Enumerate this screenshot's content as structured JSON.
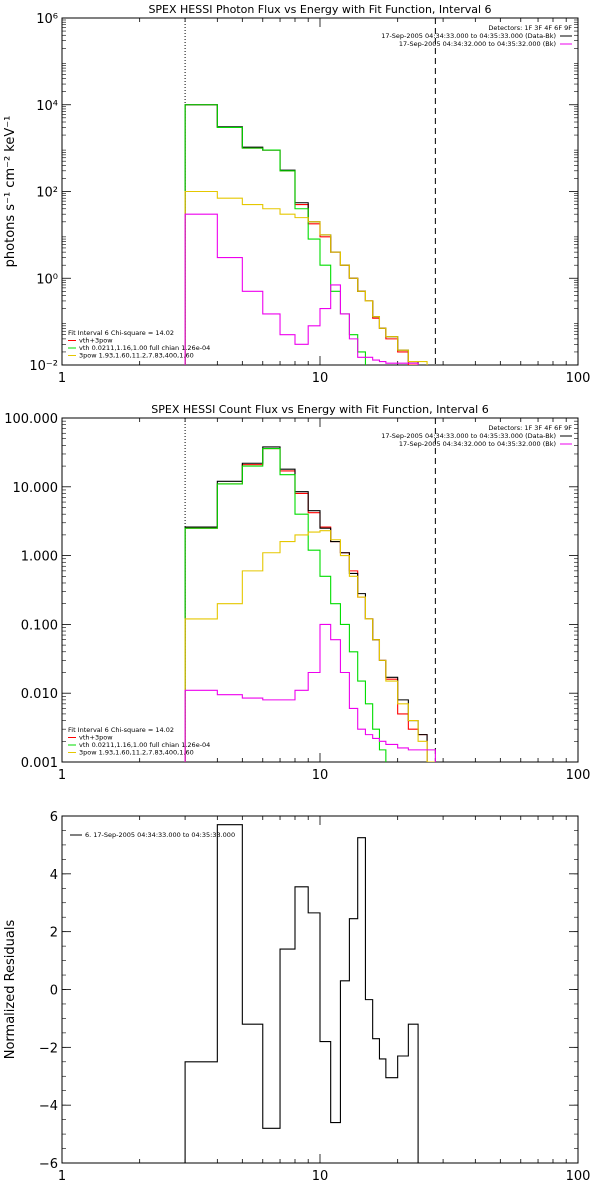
{
  "chart_data": [
    {
      "type": "line",
      "title": "SPEX HESSI Photon Flux vs Energy with Fit Function, Interval 6",
      "xlabel": "",
      "ylabel": "photons s⁻¹ cm⁻² keV⁻¹",
      "xscale": "log",
      "yscale": "log",
      "xlim": [
        1,
        100
      ],
      "ylim": [
        0.01,
        1000000
      ],
      "xticks": [
        "1",
        "10",
        "100"
      ],
      "yticks": [
        "10⁻²",
        "10⁰",
        "10²",
        "10⁴",
        "10⁶"
      ],
      "ytick_values": [
        0.01,
        1,
        100,
        10000,
        1000000
      ],
      "vlines": [
        {
          "x": 3,
          "style": "dotted"
        },
        {
          "x": 28,
          "style": "dashed"
        }
      ],
      "legend_top_right": [
        "Detectors: 1F 3F 4F 6F 9F",
        "17-Sep-2005 04:34:33.000 to 04:35:33.000 (Data-Bk)",
        "17-Sep-2005 04:34:32.000 to 04:35:32.000 (Bk)"
      ],
      "legend_bottom_left": [
        "Fit Interval 6   Chi-square = 14.02",
        "vth+3pow",
        "vth 0.0211,1.16,1.00  full chian 1.26e-04",
        "3pow 1.93,1.60,11.2,7.83,400,1.60"
      ],
      "edges": [
        3,
        4,
        5,
        6,
        7,
        8,
        9,
        10,
        11,
        12,
        13,
        14,
        15,
        16,
        17,
        18,
        20,
        22,
        24,
        26,
        28,
        30,
        32
      ],
      "series": [
        {
          "color": "#ff0000",
          "values": [
            10000,
            3000,
            1000,
            900,
            300,
            50,
            18,
            9,
            4,
            2,
            1.0,
            0.5,
            0.3,
            0.12,
            0.07,
            0.04,
            0.02,
            0.01,
            null,
            null,
            null,
            null
          ]
        },
        {
          "color": "#000000",
          "values": [
            10000,
            3100,
            1050,
            900,
            310,
            55,
            20,
            10,
            4,
            2,
            1.0,
            0.5,
            0.3,
            0.13,
            0.07,
            0.045,
            0.022,
            0.012,
            null,
            null,
            null,
            null
          ]
        },
        {
          "color": "#00dd00",
          "values": [
            10000,
            3000,
            1000,
            900,
            300,
            40,
            8,
            2,
            0.5,
            0.15,
            0.05,
            0.02,
            null,
            null,
            null,
            null,
            null,
            null,
            null,
            null,
            null,
            null
          ]
        },
        {
          "color": "#e5c700",
          "values": [
            100,
            70,
            50,
            40,
            30,
            25,
            20,
            10,
            4,
            2,
            1.0,
            0.5,
            0.3,
            0.13,
            0.07,
            0.045,
            0.022,
            0.012,
            0.012,
            null,
            null,
            null
          ]
        },
        {
          "color": "#ee00ee",
          "values": [
            30,
            3,
            0.5,
            0.15,
            0.05,
            0.03,
            0.08,
            0.2,
            0.7,
            0.15,
            0.04,
            0.015,
            0.015,
            0.013,
            0.012,
            0.011,
            0.011,
            0.011,
            null,
            null,
            null,
            null
          ]
        }
      ]
    },
    {
      "type": "line",
      "title": "SPEX HESSI Count Flux vs Energy with Fit Function, Interval 6",
      "xlabel": "",
      "ylabel": "",
      "xscale": "log",
      "yscale": "log",
      "xlim": [
        1,
        100
      ],
      "ylim": [
        0.001,
        100
      ],
      "xticks": [
        "1",
        "10",
        "100"
      ],
      "yticks": [
        "0.001",
        "0.010",
        "0.100",
        "1.000",
        "10.000",
        "100.000"
      ],
      "ytick_values": [
        0.001,
        0.01,
        0.1,
        1,
        10,
        100
      ],
      "vlines": [
        {
          "x": 3,
          "style": "dotted"
        },
        {
          "x": 28,
          "style": "dashed"
        }
      ],
      "legend_top_right": [
        "Detectors: 1F 3F 4F 6F 9F",
        "17-Sep-2005 04:34:33.000 to 04:35:33.000 (Data-Bk)",
        "17-Sep-2005 04:34:32.000 to 04:35:32.000 (Bk)"
      ],
      "legend_bottom_left": [
        "Fit Interval 6   Chi-square = 14.02",
        "vth+3pow",
        "vth 0.0211,1.16,1.00  full chian 1.26e-04",
        "3pow 1.93,1.60,11.2,7.83,400,1.60"
      ],
      "edges": [
        3,
        4,
        5,
        6,
        7,
        8,
        9,
        10,
        11,
        12,
        13,
        14,
        15,
        16,
        17,
        18,
        20,
        22,
        24,
        26,
        28,
        30,
        32
      ],
      "series": [
        {
          "color": "#ff0000",
          "values": [
            2.5,
            11,
            21,
            36,
            17,
            8,
            4.2,
            2.6,
            1.6,
            1.1,
            0.6,
            0.25,
            0.12,
            0.06,
            0.03,
            0.016,
            0.005,
            0.003,
            0.0025,
            null,
            null,
            null
          ]
        },
        {
          "color": "#000000",
          "values": [
            2.6,
            12,
            22,
            38,
            18,
            8.5,
            4.5,
            2.5,
            1.6,
            1.1,
            0.55,
            0.28,
            0.12,
            0.06,
            0.03,
            0.017,
            0.008,
            0.004,
            0.0025,
            null,
            null,
            null
          ]
        },
        {
          "color": "#00dd00",
          "values": [
            2.5,
            11,
            20,
            36,
            15,
            4,
            1.2,
            0.5,
            0.2,
            0.1,
            0.04,
            0.015,
            0.007,
            0.003,
            0.0015,
            null,
            null,
            null,
            null,
            null,
            null,
            null
          ]
        },
        {
          "color": "#e5c700",
          "values": [
            0.12,
            0.2,
            0.6,
            1.1,
            1.6,
            2,
            2.2,
            2.3,
            1.7,
            1.0,
            0.5,
            0.25,
            0.12,
            0.06,
            0.03,
            0.015,
            0.007,
            0.004,
            0.002,
            0.001,
            null,
            null
          ]
        },
        {
          "color": "#ee00ee",
          "values": [
            0.011,
            0.0095,
            0.0085,
            0.008,
            0.008,
            0.011,
            0.02,
            0.1,
            0.06,
            0.02,
            0.006,
            0.003,
            0.0025,
            0.0022,
            0.002,
            0.0018,
            0.0016,
            0.0015,
            0.0015,
            0.0015,
            null,
            null
          ]
        }
      ]
    },
    {
      "type": "line",
      "title": "",
      "xlabel": "",
      "ylabel": "Normalized Residuals",
      "xscale": "log",
      "yscale": "linear",
      "xlim": [
        1,
        100
      ],
      "ylim": [
        -6,
        6
      ],
      "xticks": [
        "1",
        "10",
        "100"
      ],
      "yticks": [
        "−6",
        "−4",
        "−2",
        "0",
        "2",
        "4",
        "6"
      ],
      "ytick_values": [
        -6,
        -4,
        -2,
        0,
        2,
        4,
        6
      ],
      "legend": "6. 17-Sep-2005 04:34:33.000 to 04:35:33.000",
      "edges": [
        3,
        4,
        5,
        6,
        7,
        8,
        9,
        10,
        11,
        12,
        13,
        14,
        15,
        16,
        17,
        18,
        20,
        22,
        24,
        26,
        28
      ],
      "series": [
        {
          "color": "#000000",
          "values": [
            -2.5,
            5.7,
            -1.2,
            -4.8,
            1.4,
            3.55,
            2.65,
            -1.8,
            -4.6,
            0.3,
            2.45,
            5.25,
            -0.35,
            -1.7,
            -2.4,
            -3.05,
            -2.3,
            -1.2,
            null,
            null
          ]
        }
      ]
    }
  ]
}
